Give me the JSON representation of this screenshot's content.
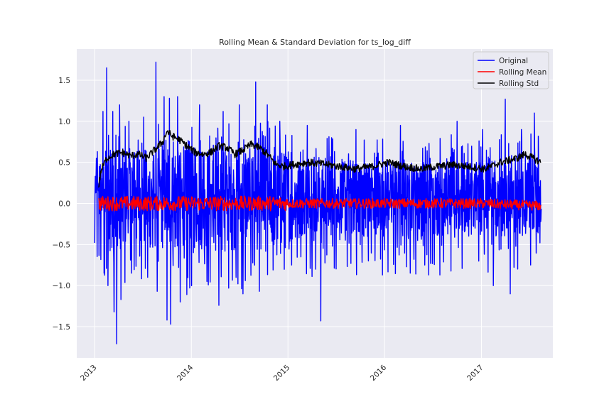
{
  "chart_data": {
    "type": "line",
    "title": "Rolling Mean & Standard Deviation for ts_log_diff",
    "xlabel": "",
    "ylabel": "",
    "x_range": [
      "2013-01-01",
      "2017-08-15"
    ],
    "xlim": [
      "2012-10-25",
      "2017-09-28"
    ],
    "x_ticks": [
      "2013",
      "2014",
      "2015",
      "2016",
      "2017"
    ],
    "x_tick_dates": [
      "2013-01-01",
      "2014-01-01",
      "2015-01-01",
      "2016-01-01",
      "2017-01-01"
    ],
    "ylim": [
      -1.88,
      1.88
    ],
    "y_ticks": [
      -1.5,
      -1.0,
      -0.5,
      0.0,
      0.5,
      1.0,
      1.5
    ],
    "y_tick_labels": [
      "−1.5",
      "−1.0",
      "−0.5",
      "0.0",
      "0.5",
      "1.0",
      "1.5"
    ],
    "grid": true,
    "legend_position": "top-right",
    "series": [
      {
        "name": "Original",
        "color": "#0000ff",
        "points": [
          [
            "2013-01-01",
            -0.48
          ],
          [
            "2013-01-03",
            0.33
          ],
          [
            "2013-01-07",
            0.55
          ],
          [
            "2013-02-01",
            1.12
          ],
          [
            "2013-02-05",
            -0.85
          ],
          [
            "2013-02-15",
            1.65
          ],
          [
            "2013-02-20",
            -1.0
          ],
          [
            "2013-03-10",
            1.12
          ],
          [
            "2013-03-15",
            -1.32
          ],
          [
            "2013-03-25",
            -1.71
          ],
          [
            "2013-04-05",
            1.2
          ],
          [
            "2013-04-10",
            -1.17
          ],
          [
            "2013-05-10",
            1.0
          ],
          [
            "2013-05-20",
            -0.85
          ],
          [
            "2013-07-05",
            1.05
          ],
          [
            "2013-07-20",
            -0.9
          ],
          [
            "2013-08-20",
            1.72
          ],
          [
            "2013-08-25",
            -1.07
          ],
          [
            "2013-09-20",
            1.3
          ],
          [
            "2013-10-01",
            -1.42
          ],
          [
            "2013-10-10",
            1.28
          ],
          [
            "2013-10-15",
            -1.47
          ],
          [
            "2013-11-10",
            1.3
          ],
          [
            "2013-11-20",
            -1.2
          ],
          [
            "2013-12-15",
            -1.11
          ],
          [
            "2014-02-01",
            1.2
          ],
          [
            "2014-03-01",
            -0.95
          ],
          [
            "2014-04-15",
            -1.24
          ],
          [
            "2014-05-01",
            1.12
          ],
          [
            "2014-07-01",
            1.2
          ],
          [
            "2014-07-15",
            -1.1
          ],
          [
            "2014-09-01",
            1.48
          ],
          [
            "2014-09-15",
            -1.07
          ],
          [
            "2014-10-15",
            1.2
          ],
          [
            "2014-12-01",
            1.0
          ],
          [
            "2015-01-15",
            -0.75
          ],
          [
            "2015-03-15",
            0.95
          ],
          [
            "2015-05-05",
            -1.43
          ],
          [
            "2015-06-15",
            0.8
          ],
          [
            "2015-09-15",
            0.9
          ],
          [
            "2015-11-01",
            -0.7
          ],
          [
            "2016-03-01",
            0.95
          ],
          [
            "2016-06-01",
            -0.75
          ],
          [
            "2016-10-01",
            1.0
          ],
          [
            "2017-01-05",
            0.9
          ],
          [
            "2017-02-15",
            -1.0
          ],
          [
            "2017-04-01",
            1.27
          ],
          [
            "2017-04-20",
            -1.1
          ],
          [
            "2017-06-01",
            0.9
          ],
          [
            "2017-07-20",
            1.1
          ],
          [
            "2017-08-10",
            -0.48
          ]
        ]
      },
      {
        "name": "Rolling Mean",
        "color": "#ff0000",
        "points": [
          [
            "2013-01-15",
            0.0
          ],
          [
            "2013-04-01",
            0.0
          ],
          [
            "2013-08-20",
            0.0
          ],
          [
            "2014-01-01",
            0.0
          ],
          [
            "2014-06-01",
            0.0
          ],
          [
            "2015-01-01",
            0.0
          ],
          [
            "2016-01-01",
            0.0
          ],
          [
            "2017-01-01",
            0.0
          ],
          [
            "2017-08-15",
            -0.03
          ]
        ]
      },
      {
        "name": "Rolling Std",
        "color": "#000000",
        "points": [
          [
            "2013-01-15",
            0.2
          ],
          [
            "2013-01-25",
            0.4
          ],
          [
            "2013-02-15",
            0.55
          ],
          [
            "2013-03-15",
            0.6
          ],
          [
            "2013-04-15",
            0.62
          ],
          [
            "2013-05-15",
            0.58
          ],
          [
            "2013-06-15",
            0.6
          ],
          [
            "2013-07-15",
            0.55
          ],
          [
            "2013-08-15",
            0.65
          ],
          [
            "2013-09-15",
            0.75
          ],
          [
            "2013-10-01",
            0.88
          ],
          [
            "2013-10-20",
            0.82
          ],
          [
            "2013-11-15",
            0.78
          ],
          [
            "2013-12-15",
            0.7
          ],
          [
            "2014-01-15",
            0.62
          ],
          [
            "2014-02-15",
            0.6
          ],
          [
            "2014-03-15",
            0.62
          ],
          [
            "2014-04-15",
            0.7
          ],
          [
            "2014-05-15",
            0.68
          ],
          [
            "2014-06-15",
            0.6
          ],
          [
            "2014-07-15",
            0.65
          ],
          [
            "2014-08-15",
            0.72
          ],
          [
            "2014-09-15",
            0.68
          ],
          [
            "2014-10-15",
            0.6
          ],
          [
            "2014-11-15",
            0.48
          ],
          [
            "2014-12-15",
            0.45
          ],
          [
            "2015-01-15",
            0.47
          ],
          [
            "2015-03-15",
            0.5
          ],
          [
            "2015-05-15",
            0.48
          ],
          [
            "2015-07-15",
            0.45
          ],
          [
            "2015-09-15",
            0.42
          ],
          [
            "2015-11-15",
            0.45
          ],
          [
            "2016-01-15",
            0.5
          ],
          [
            "2016-03-15",
            0.45
          ],
          [
            "2016-05-15",
            0.42
          ],
          [
            "2016-07-15",
            0.45
          ],
          [
            "2016-09-15",
            0.47
          ],
          [
            "2016-11-15",
            0.45
          ],
          [
            "2017-01-15",
            0.42
          ],
          [
            "2017-03-15",
            0.5
          ],
          [
            "2017-05-15",
            0.55
          ],
          [
            "2017-06-15",
            0.6
          ],
          [
            "2017-07-15",
            0.55
          ],
          [
            "2017-08-15",
            0.5
          ]
        ]
      }
    ]
  }
}
